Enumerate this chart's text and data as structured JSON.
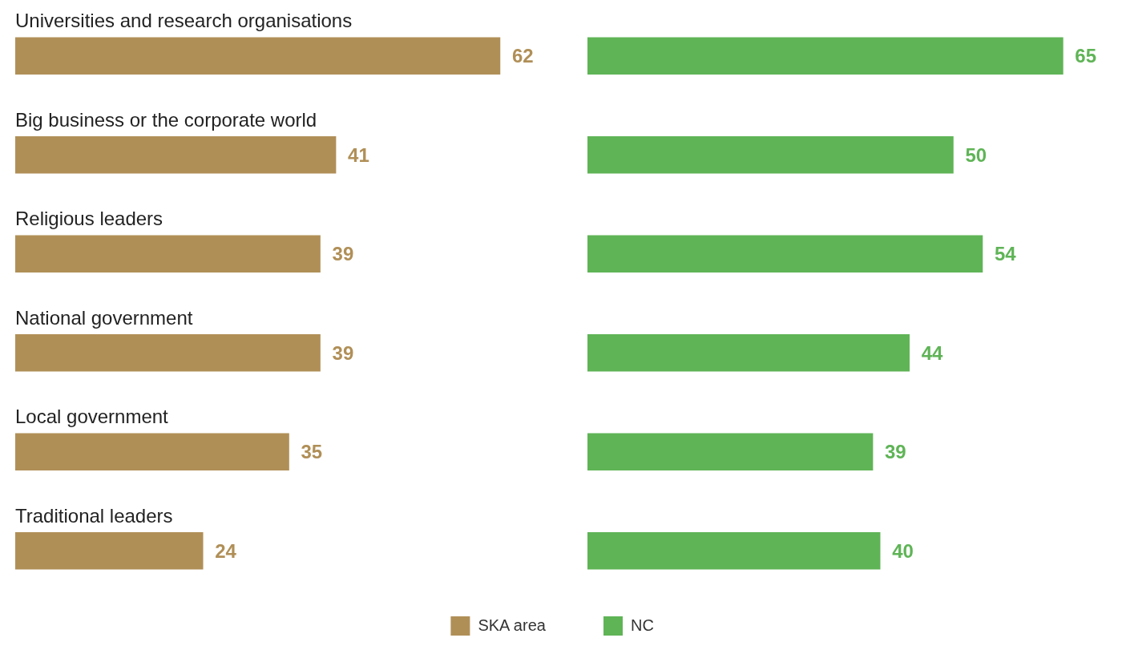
{
  "chart_data": [
    {
      "type": "bar",
      "orientation": "horizontal",
      "categories": [
        "Universities and research organisations",
        "Big business or the corporate world",
        "Religious leaders",
        "National government",
        "Local government",
        "Traditional leaders"
      ],
      "series": [
        {
          "name": "SKA area",
          "color": "#b08f57",
          "values": [
            62,
            41,
            39,
            39,
            35,
            24
          ]
        }
      ],
      "tick_labels": "y",
      "data_labels": true,
      "legend": "bottom right"
    },
    {
      "type": "bar",
      "orientation": "horizontal",
      "categories": [
        null,
        null,
        null,
        null,
        null,
        null
      ],
      "series": [
        {
          "name": "NC",
          "color": "#5fb456",
          "values": [
            65,
            50,
            54,
            44,
            39,
            40
          ]
        }
      ],
      "tick_labels": false,
      "data_labels": true,
      "legend": "bottom left"
    }
  ]
}
